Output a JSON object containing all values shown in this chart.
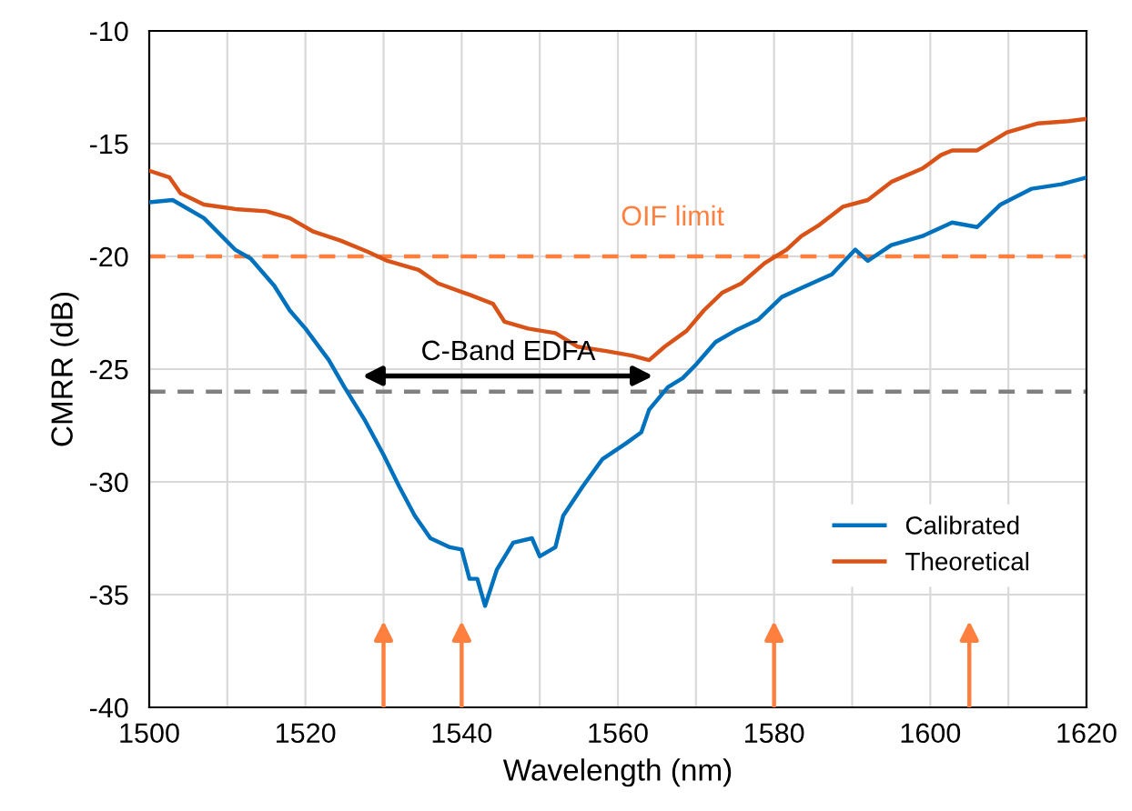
{
  "chart_data": {
    "type": "line",
    "xlabel": "Wavelength (nm)",
    "ylabel": "CMRR (dB)",
    "xlim": [
      1500,
      1620
    ],
    "ylim": [
      -40,
      -10
    ],
    "xticks": [
      1500,
      {
        "value": 1510,
        "label": null
      },
      1520,
      {
        "value": 1530,
        "label": null
      },
      1540,
      {
        "value": 1550,
        "label": null
      },
      1560,
      {
        "value": 1570,
        "label": null
      },
      1580,
      {
        "value": 1590,
        "label": null
      },
      1600,
      {
        "value": 1610,
        "label": null
      },
      1620
    ],
    "yticks": [
      -40,
      -35,
      -30,
      -25,
      -20,
      -15,
      -10
    ],
    "grid": true,
    "legend": "bottom right",
    "line_style": "solid",
    "marker": "none",
    "series": [
      {
        "name": "Calibrated",
        "color": "#0072bd",
        "x": [
          1500,
          1503,
          1507,
          1511,
          1513,
          1516,
          1518,
          1520,
          1523,
          1525,
          1527.5,
          1530,
          1532,
          1534,
          1536,
          1538.5,
          1540,
          1541,
          1542,
          1543,
          1544.5,
          1546.6,
          1549,
          1550,
          1552,
          1553,
          1555.5,
          1558,
          1561,
          1563,
          1564,
          1566.4,
          1568.3,
          1570,
          1572.5,
          1575,
          1578,
          1581,
          1583.5,
          1587.4,
          1590.4,
          1592,
          1595,
          1599,
          1602.8,
          1606,
          1609,
          1613,
          1616.8,
          1620
        ],
        "values": [
          -17.6,
          -17.5,
          -18.3,
          -19.7,
          -20.1,
          -21.3,
          -22.4,
          -23.2,
          -24.6,
          -25.8,
          -27.2,
          -28.8,
          -30.2,
          -31.5,
          -32.5,
          -32.9,
          -33.0,
          -34.3,
          -34.3,
          -35.5,
          -33.9,
          -32.7,
          -32.5,
          -33.3,
          -32.9,
          -31.5,
          -30.2,
          -29.0,
          -28.3,
          -27.8,
          -26.8,
          -25.8,
          -25.4,
          -24.8,
          -23.8,
          -23.3,
          -22.8,
          -21.8,
          -21.4,
          -20.8,
          -19.7,
          -20.2,
          -19.5,
          -19.1,
          -18.5,
          -18.7,
          -17.7,
          -17.0,
          -16.8,
          -16.5
        ]
      },
      {
        "name": "Theoretical",
        "color": "#d95319",
        "x": [
          1500,
          1502.6,
          1504,
          1507,
          1511,
          1515,
          1518,
          1521,
          1524.5,
          1528,
          1530.5,
          1534.5,
          1537,
          1541,
          1544,
          1545.5,
          1548.5,
          1552,
          1554.8,
          1558.5,
          1561.8,
          1564,
          1566,
          1568.8,
          1571,
          1573.4,
          1575.8,
          1578.8,
          1581.6,
          1583.5,
          1585.8,
          1588.8,
          1592,
          1595,
          1599,
          1601.4,
          1602.8,
          1606,
          1609.8,
          1613.8,
          1617.7,
          1620
        ],
        "values": [
          -16.2,
          -16.5,
          -17.2,
          -17.7,
          -17.9,
          -18.0,
          -18.3,
          -18.9,
          -19.3,
          -19.8,
          -20.2,
          -20.6,
          -21.2,
          -21.7,
          -22.1,
          -22.9,
          -23.2,
          -23.4,
          -24.0,
          -24.2,
          -24.4,
          -24.6,
          -24.0,
          -23.3,
          -22.4,
          -21.6,
          -21.2,
          -20.3,
          -19.7,
          -19.1,
          -18.6,
          -17.8,
          -17.5,
          -16.7,
          -16.1,
          -15.5,
          -15.3,
          -15.3,
          -14.5,
          -14.1,
          -14.0,
          -13.9
        ]
      }
    ],
    "ref_lines": [
      {
        "axis": "y",
        "value": -20,
        "label": "OIF limit",
        "color": "#ff7f3f",
        "line_style": "dashed"
      },
      {
        "axis": "y",
        "value": -26,
        "color": "#808080",
        "line_style": "dashed"
      },
      {
        "axis": "x",
        "value": 1530,
        "color": "#ff7f3f",
        "line_style": "solid"
      },
      {
        "axis": "x",
        "value": 1540,
        "color": "#ff7f3f",
        "line_style": "solid"
      },
      {
        "axis": "x",
        "value": 1580,
        "color": "#ff7f3f",
        "line_style": "solid"
      },
      {
        "axis": "x",
        "value": 1605,
        "color": "#ff7f3f",
        "line_style": "solid"
      }
    ],
    "annotations": [
      "C-Band EDFA"
    ]
  }
}
